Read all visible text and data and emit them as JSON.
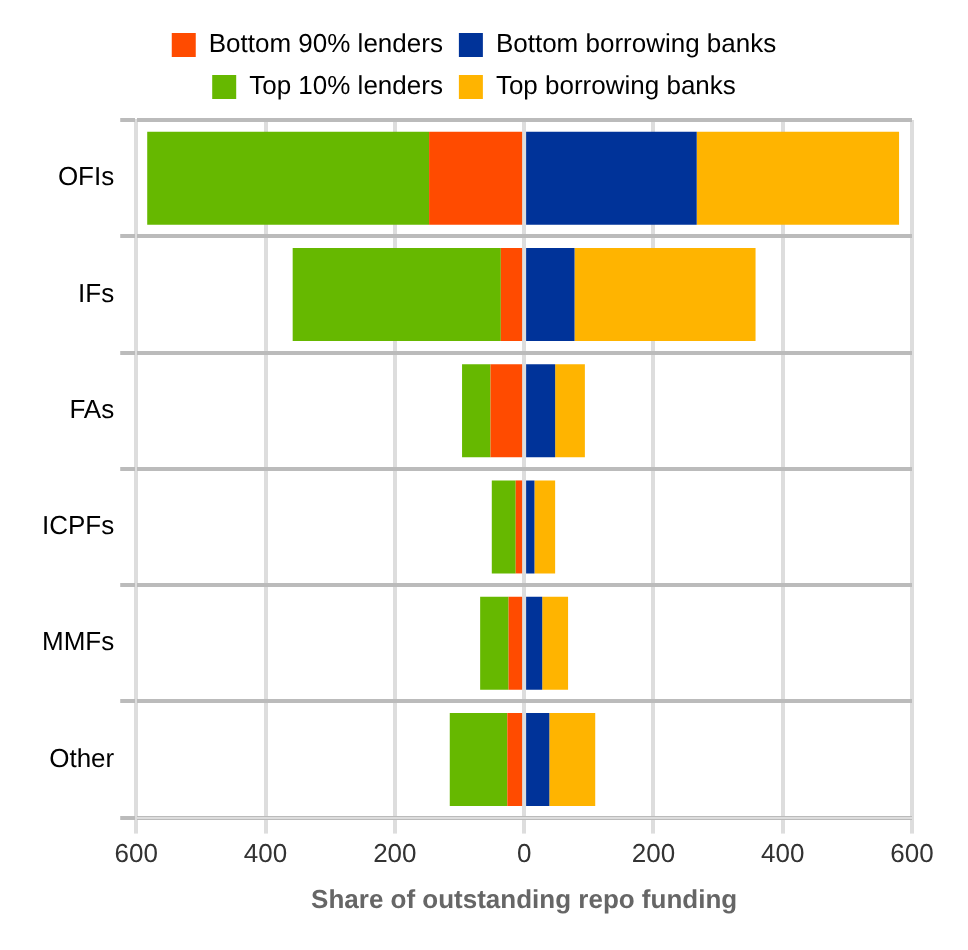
{
  "chart_data": {
    "type": "bar",
    "orientation": "horizontal",
    "stacked": true,
    "xlabel": "Share of outstanding repo funding",
    "categories": [
      "OFIs",
      "IFs",
      "FAs",
      "ICPFs",
      "MMFs",
      "Other"
    ],
    "series": [
      {
        "name": "Bottom 90% lenders",
        "color": "#ff4b00",
        "values": [
          -147,
          -36,
          -52,
          -13,
          -24,
          -26
        ]
      },
      {
        "name": "Bottom borrowing banks",
        "color": "#003399",
        "values": [
          267,
          78,
          48,
          16,
          28,
          39
        ]
      },
      {
        "name": "Top 10% lenders",
        "color": "#66b800",
        "values": [
          -436,
          -322,
          -44,
          -37,
          -44,
          -89
        ]
      },
      {
        "name": "Top borrowing banks",
        "color": "#ffb400",
        "values": [
          313,
          280,
          46,
          32,
          40,
          71
        ]
      }
    ],
    "xlim": [
      -600,
      600
    ],
    "xticks": [
      {
        "value": -600,
        "label": "600"
      },
      {
        "value": -400,
        "label": "400"
      },
      {
        "value": -200,
        "label": "200"
      },
      0,
      200,
      400,
      600
    ],
    "grid": true,
    "legend": "top"
  }
}
